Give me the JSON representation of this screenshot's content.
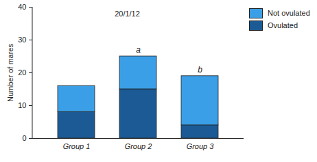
{
  "chart_data": {
    "type": "bar",
    "stacked": true,
    "title": "20/1/12",
    "y_label": "Number of mares",
    "categories": [
      "Group 1",
      "Group 2",
      "Group 3"
    ],
    "series": [
      {
        "name": "Ovulated",
        "color": "#1b5a94",
        "values": [
          8,
          15,
          4
        ]
      },
      {
        "name": "Not ovulated",
        "color": "#3a9fe6",
        "values": [
          8,
          10,
          15
        ]
      }
    ],
    "ylim": [
      0,
      40
    ],
    "yticks": [
      0,
      10,
      20,
      30,
      40
    ],
    "legend": "top-right",
    "annotations": [
      {
        "category": "Group 2",
        "text": "a"
      },
      {
        "category": "Group 3",
        "text": "b"
      }
    ]
  }
}
